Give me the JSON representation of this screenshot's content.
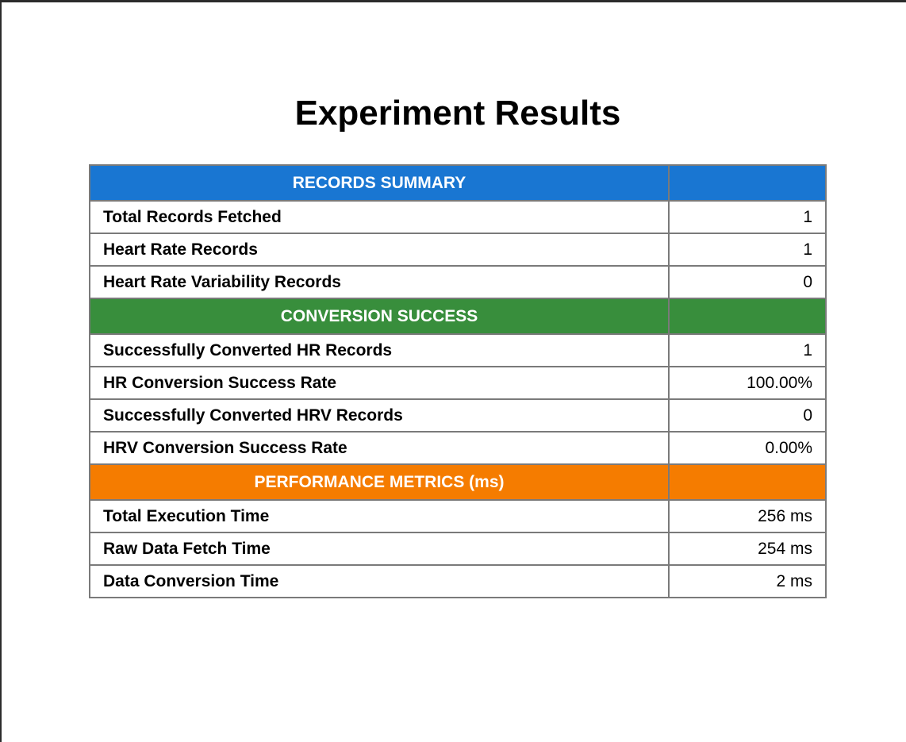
{
  "page": {
    "title": "Experiment Results"
  },
  "sections": [
    {
      "title": "RECORDS SUMMARY",
      "color": "#1976d2",
      "rows": [
        {
          "label": "Total Records Fetched",
          "value": "1"
        },
        {
          "label": "Heart Rate Records",
          "value": "1"
        },
        {
          "label": "Heart Rate Variability Records",
          "value": "0"
        }
      ]
    },
    {
      "title": "CONVERSION SUCCESS",
      "color": "#388e3c",
      "rows": [
        {
          "label": "Successfully Converted HR Records",
          "value": "1"
        },
        {
          "label": "HR Conversion Success Rate",
          "value": "100.00%"
        },
        {
          "label": "Successfully Converted HRV Records",
          "value": "0"
        },
        {
          "label": "HRV Conversion Success Rate",
          "value": "0.00%"
        }
      ]
    },
    {
      "title": "PERFORMANCE METRICS (ms)",
      "color": "#f57c00",
      "rows": [
        {
          "label": "Total Execution Time",
          "value": "256 ms"
        },
        {
          "label": "Raw Data Fetch Time",
          "value": "254 ms"
        },
        {
          "label": "Data Conversion Time",
          "value": "2 ms"
        }
      ]
    }
  ]
}
